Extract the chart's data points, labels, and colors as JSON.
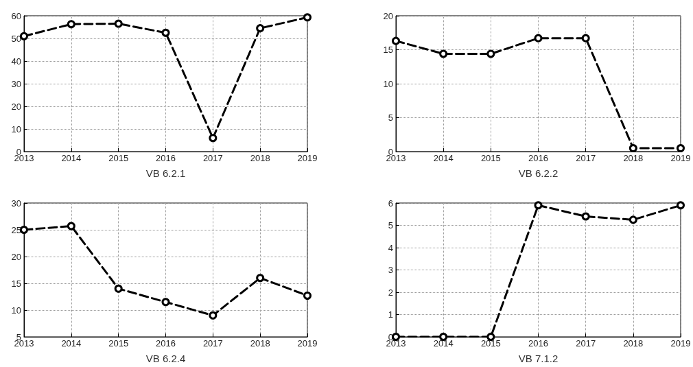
{
  "chart_data": [
    {
      "type": "line",
      "xlabel": "VB 6.2.1",
      "x": [
        2013,
        2014,
        2015,
        2016,
        2017,
        2018,
        2019
      ],
      "series": [
        {
          "color": "#000000",
          "values": [
            51,
            56.3,
            56.5,
            52.5,
            6,
            54.5,
            59.3
          ]
        }
      ],
      "xlim": [
        2013,
        2019
      ],
      "xticks": [
        2013,
        2014,
        2015,
        2016,
        2017,
        2018,
        2019
      ],
      "ylim": [
        0,
        60
      ],
      "yticks": [
        0,
        10,
        20,
        30,
        40,
        50,
        60
      ],
      "grid": true,
      "marker": "circle",
      "line_style": "dashed"
    },
    {
      "type": "line",
      "xlabel": "VB 6.2.2",
      "x": [
        2013,
        2014,
        2015,
        2016,
        2017,
        2018,
        2019
      ],
      "series": [
        {
          "color": "#000000",
          "values": [
            16.3,
            14.4,
            14.4,
            16.7,
            16.7,
            0.5,
            0.5
          ]
        }
      ],
      "xlim": [
        2013,
        2019
      ],
      "xticks": [
        2013,
        2014,
        2015,
        2016,
        2017,
        2018,
        2019
      ],
      "ylim": [
        0,
        20
      ],
      "yticks": [
        0,
        5,
        10,
        15,
        20
      ],
      "grid": true,
      "marker": "circle",
      "line_style": "dashed"
    },
    {
      "type": "line",
      "xlabel": "VB 6.2.4",
      "x": [
        2013,
        2014,
        2015,
        2016,
        2017,
        2018,
        2019
      ],
      "series": [
        {
          "color": "#000000",
          "values": [
            25,
            25.7,
            14,
            11.5,
            9,
            16,
            12.7
          ]
        }
      ],
      "xlim": [
        2013,
        2019
      ],
      "xticks": [
        2013,
        2014,
        2015,
        2016,
        2017,
        2018,
        2019
      ],
      "ylim": [
        5,
        30
      ],
      "yticks": [
        5,
        10,
        15,
        20,
        25,
        30
      ],
      "grid": true,
      "marker": "circle",
      "line_style": "dashed"
    },
    {
      "type": "line",
      "xlabel": "VB 7.1.2",
      "x": [
        2013,
        2014,
        2015,
        2016,
        2017,
        2018,
        2019
      ],
      "series": [
        {
          "color": "#000000",
          "values": [
            0,
            0,
            0,
            5.9,
            5.4,
            5.25,
            5.9
          ]
        }
      ],
      "xlim": [
        2013,
        2019
      ],
      "xticks": [
        2013,
        2014,
        2015,
        2016,
        2017,
        2018,
        2019
      ],
      "ylim": [
        0,
        6
      ],
      "yticks": [
        0,
        1,
        2,
        3,
        4,
        5,
        6
      ],
      "grid": true,
      "marker": "circle",
      "line_style": "dashed"
    }
  ]
}
